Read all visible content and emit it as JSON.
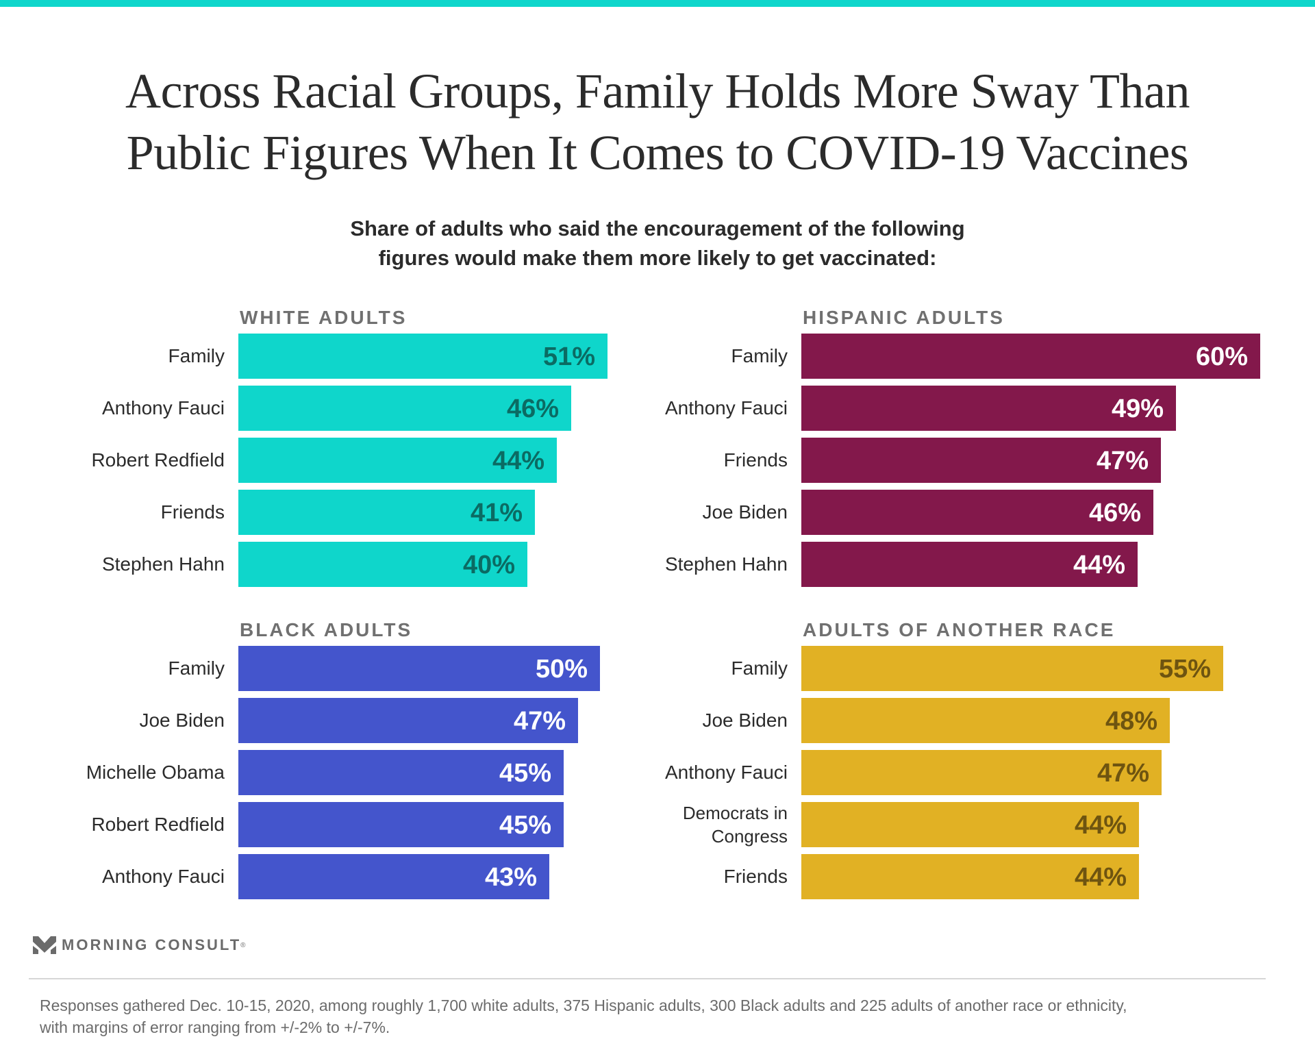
{
  "header": {
    "title_lines": [
      "Across Racial Groups, Family Holds More Sway Than",
      "Public Figures When It Comes to COVID-19 Vaccines"
    ],
    "subtitle_lines": [
      "Share of adults who said the encouragement of the following",
      "figures would make them more likely to get vaccinated:"
    ]
  },
  "colors": {
    "top_bar": "#0fd6cb",
    "white_adults": "#0fd6cb",
    "white_adults_value_text": "#0b6b63",
    "hispanic_adults": "#83184b",
    "hispanic_adults_value_text": "#ffffff",
    "black_adults": "#4455cc",
    "black_adults_value_text": "#ffffff",
    "another_race": "#e1b124",
    "another_race_value_text": "#6e5410"
  },
  "chart_data": [
    {
      "type": "bar",
      "orientation": "horizontal",
      "title": "WHITE ADULTS",
      "categories": [
        "Family",
        "Anthony Fauci",
        "Robert Redfield",
        "Friends",
        "Stephen Hahn"
      ],
      "values": [
        51,
        46,
        44,
        41,
        40
      ],
      "value_labels": [
        "51%",
        "46%",
        "44%",
        "41%",
        "40%"
      ],
      "unit": "%",
      "color": "#0fd6cb",
      "label_color": "#0b6b63"
    },
    {
      "type": "bar",
      "orientation": "horizontal",
      "title": "HISPANIC ADULTS",
      "categories": [
        "Family",
        "Anthony Fauci",
        "Friends",
        "Joe Biden",
        "Stephen Hahn"
      ],
      "values": [
        60,
        49,
        47,
        46,
        44
      ],
      "value_labels": [
        "60%",
        "49%",
        "47%",
        "46%",
        "44%"
      ],
      "unit": "%",
      "color": "#83184b",
      "label_color": "#ffffff"
    },
    {
      "type": "bar",
      "orientation": "horizontal",
      "title": "BLACK ADULTS",
      "categories": [
        "Family",
        "Joe Biden",
        "Michelle Obama",
        "Robert Redfield",
        "Anthony Fauci"
      ],
      "values": [
        50,
        47,
        45,
        45,
        43
      ],
      "value_labels": [
        "50%",
        "47%",
        "45%",
        "45%",
        "43%"
      ],
      "unit": "%",
      "color": "#4455cc",
      "label_color": "#ffffff"
    },
    {
      "type": "bar",
      "orientation": "horizontal",
      "title": "ADULTS OF ANOTHER RACE",
      "categories": [
        "Family",
        "Joe Biden",
        "Anthony Fauci",
        "Democrats in Congress",
        "Friends"
      ],
      "category_lines": [
        [
          "Family"
        ],
        [
          "Joe Biden"
        ],
        [
          "Anthony Fauci"
        ],
        [
          "Democrats in",
          "Congress"
        ],
        [
          "Friends"
        ]
      ],
      "values": [
        55,
        48,
        47,
        44,
        44
      ],
      "value_labels": [
        "55%",
        "48%",
        "47%",
        "44%",
        "44%"
      ],
      "unit": "%",
      "color": "#e1b124",
      "label_color": "#6e5410"
    }
  ],
  "footer": {
    "brand": "MORNING CONSULT",
    "brand_mark": "®",
    "logo_icon": "morning-consult-chevron-icon",
    "note_lines": [
      "Responses gathered Dec. 10-15, 2020, among roughly 1,700 white adults, 375 Hispanic adults, 300 Black adults and 225 adults of another race or ethnicity,",
      "with margins of error ranging from +/-2% to +/-7%."
    ]
  }
}
